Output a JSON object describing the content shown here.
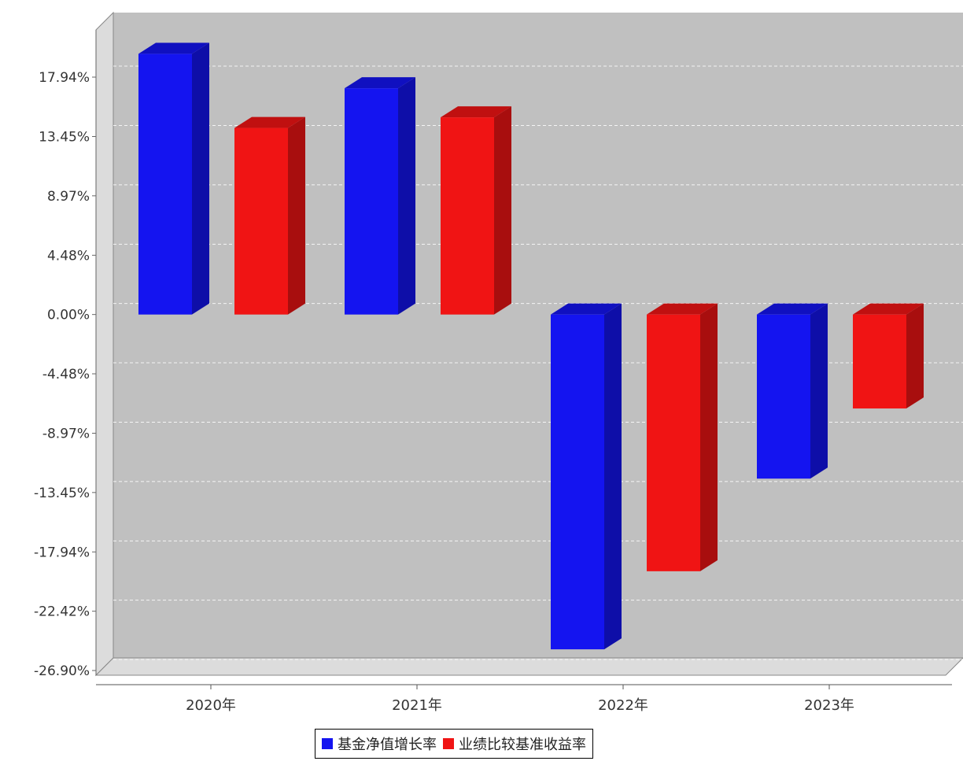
{
  "chart_data": {
    "type": "bar",
    "categories": [
      "2020年",
      "2021年",
      "2022年",
      "2023年"
    ],
    "series": [
      {
        "name": "基金净值增长率",
        "color": "#1414f0",
        "values": [
          19.7,
          17.1,
          -25.3,
          -12.4
        ]
      },
      {
        "name": "业绩比较基准收益率",
        "color": "#f01414",
        "values": [
          14.1,
          14.9,
          -19.4,
          -7.1
        ]
      }
    ],
    "ylim": [
      -26.9,
      17.94
    ],
    "yticks": [
      "17.94%",
      "13.45%",
      "8.97%",
      "4.48%",
      "0.00%",
      "-4.48%",
      "-8.97%",
      "-13.45%",
      "-17.94%",
      "-22.42%",
      "-26.90%"
    ],
    "ytick_values": [
      17.94,
      13.45,
      8.97,
      4.48,
      0.0,
      -4.48,
      -8.97,
      -13.45,
      -17.94,
      -22.42,
      -26.9
    ],
    "grid": true,
    "legend_position": "bottom-center",
    "plot_background": "#c0c0c0"
  }
}
